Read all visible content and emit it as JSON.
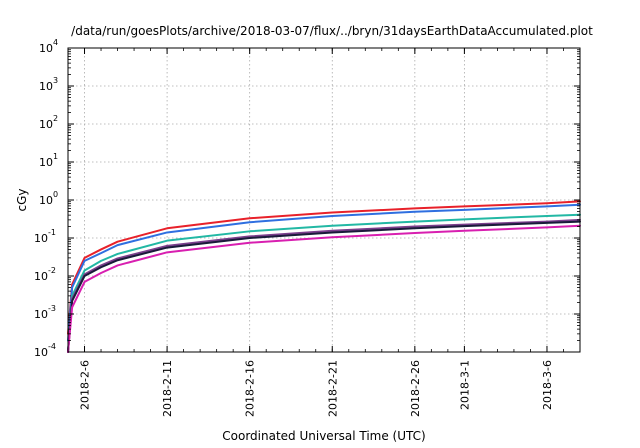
{
  "chart_data": {
    "type": "line",
    "title": "/data/run/goesPlots/archive/2018-03-07/flux/../bryn/31daysEarthDataAccumulated.plot",
    "xlabel": "Coordinated Universal Time (UTC)",
    "ylabel": "cGy",
    "yscale": "log",
    "ylim": [
      0.0001,
      10000
    ],
    "yticks": [
      {
        "base": "10",
        "exp": "-4",
        "value": 0.0001
      },
      {
        "base": "10",
        "exp": "-3",
        "value": 0.001
      },
      {
        "base": "10",
        "exp": "-2",
        "value": 0.01
      },
      {
        "base": "10",
        "exp": "-1",
        "value": 0.1
      },
      {
        "base": "10",
        "exp": "0",
        "value": 1
      },
      {
        "base": "10",
        "exp": "1",
        "value": 10
      },
      {
        "base": "10",
        "exp": "2",
        "value": 100
      },
      {
        "base": "10",
        "exp": "3",
        "value": 1000
      },
      {
        "base": "10",
        "exp": "4",
        "value": 10000
      }
    ],
    "xlim": [
      "2018-02-05",
      "2018-03-08"
    ],
    "xticks": [
      "2018-2-6",
      "2018-2-11",
      "2018-2-16",
      "2018-2-21",
      "2018-2-26",
      "2018-3-1",
      "2018-3-6"
    ],
    "grid": true,
    "legend": "none",
    "series": [
      {
        "color": "#e8212a",
        "x": [
          "2018-02-05",
          "2018-02-05 06:00",
          "2018-02-06",
          "2018-02-07",
          "2018-02-08",
          "2018-02-11",
          "2018-02-16",
          "2018-02-21",
          "2018-02-26",
          "2018-03-01",
          "2018-03-06",
          "2018-03-08"
        ],
        "values": [
          0.0003,
          0.006,
          0.03,
          0.05,
          0.08,
          0.18,
          0.33,
          0.47,
          0.6,
          0.68,
          0.82,
          0.92
        ]
      },
      {
        "color": "#2f6fe0",
        "x": [
          "2018-02-05",
          "2018-02-05 06:00",
          "2018-02-06",
          "2018-02-07",
          "2018-02-08",
          "2018-02-11",
          "2018-02-16",
          "2018-02-21",
          "2018-02-26",
          "2018-03-01",
          "2018-03-06",
          "2018-03-08"
        ],
        "values": [
          0.0002,
          0.005,
          0.025,
          0.04,
          0.065,
          0.14,
          0.26,
          0.38,
          0.49,
          0.55,
          0.68,
          0.75
        ]
      },
      {
        "color": "#22b8a4",
        "x": [
          "2018-02-05",
          "2018-02-05 06:00",
          "2018-02-06",
          "2018-02-07",
          "2018-02-08",
          "2018-02-11",
          "2018-02-16",
          "2018-02-21",
          "2018-02-26",
          "2018-03-01",
          "2018-03-06",
          "2018-03-08"
        ],
        "values": [
          0.0001,
          0.003,
          0.014,
          0.025,
          0.038,
          0.085,
          0.15,
          0.21,
          0.27,
          0.31,
          0.38,
          0.41
        ]
      },
      {
        "color": "#7a3f8c",
        "x": [
          "2018-02-05",
          "2018-02-05 06:00",
          "2018-02-06",
          "2018-02-07",
          "2018-02-08",
          "2018-02-11",
          "2018-02-16",
          "2018-02-21",
          "2018-02-26",
          "2018-03-01",
          "2018-03-06",
          "2018-03-08"
        ],
        "values": [
          0.0001,
          0.0025,
          0.011,
          0.019,
          0.029,
          0.062,
          0.11,
          0.155,
          0.2,
          0.225,
          0.27,
          0.3
        ]
      },
      {
        "color": "#1a1a3a",
        "x": [
          "2018-02-05",
          "2018-02-05 06:00",
          "2018-02-06",
          "2018-02-07",
          "2018-02-08",
          "2018-02-11",
          "2018-02-16",
          "2018-02-21",
          "2018-02-26",
          "2018-03-01",
          "2018-03-06",
          "2018-03-08"
        ],
        "values": [
          0.0001,
          0.0022,
          0.01,
          0.017,
          0.026,
          0.056,
          0.1,
          0.14,
          0.18,
          0.205,
          0.25,
          0.27
        ]
      },
      {
        "color": "#d81fb0",
        "x": [
          "2018-02-05",
          "2018-02-05 06:00",
          "2018-02-06",
          "2018-02-07",
          "2018-02-08",
          "2018-02-11",
          "2018-02-16",
          "2018-02-21",
          "2018-02-26",
          "2018-03-01",
          "2018-03-06",
          "2018-03-08"
        ],
        "values": [
          0.0001,
          0.0015,
          0.007,
          0.012,
          0.019,
          0.042,
          0.075,
          0.105,
          0.135,
          0.155,
          0.19,
          0.21
        ]
      }
    ]
  }
}
